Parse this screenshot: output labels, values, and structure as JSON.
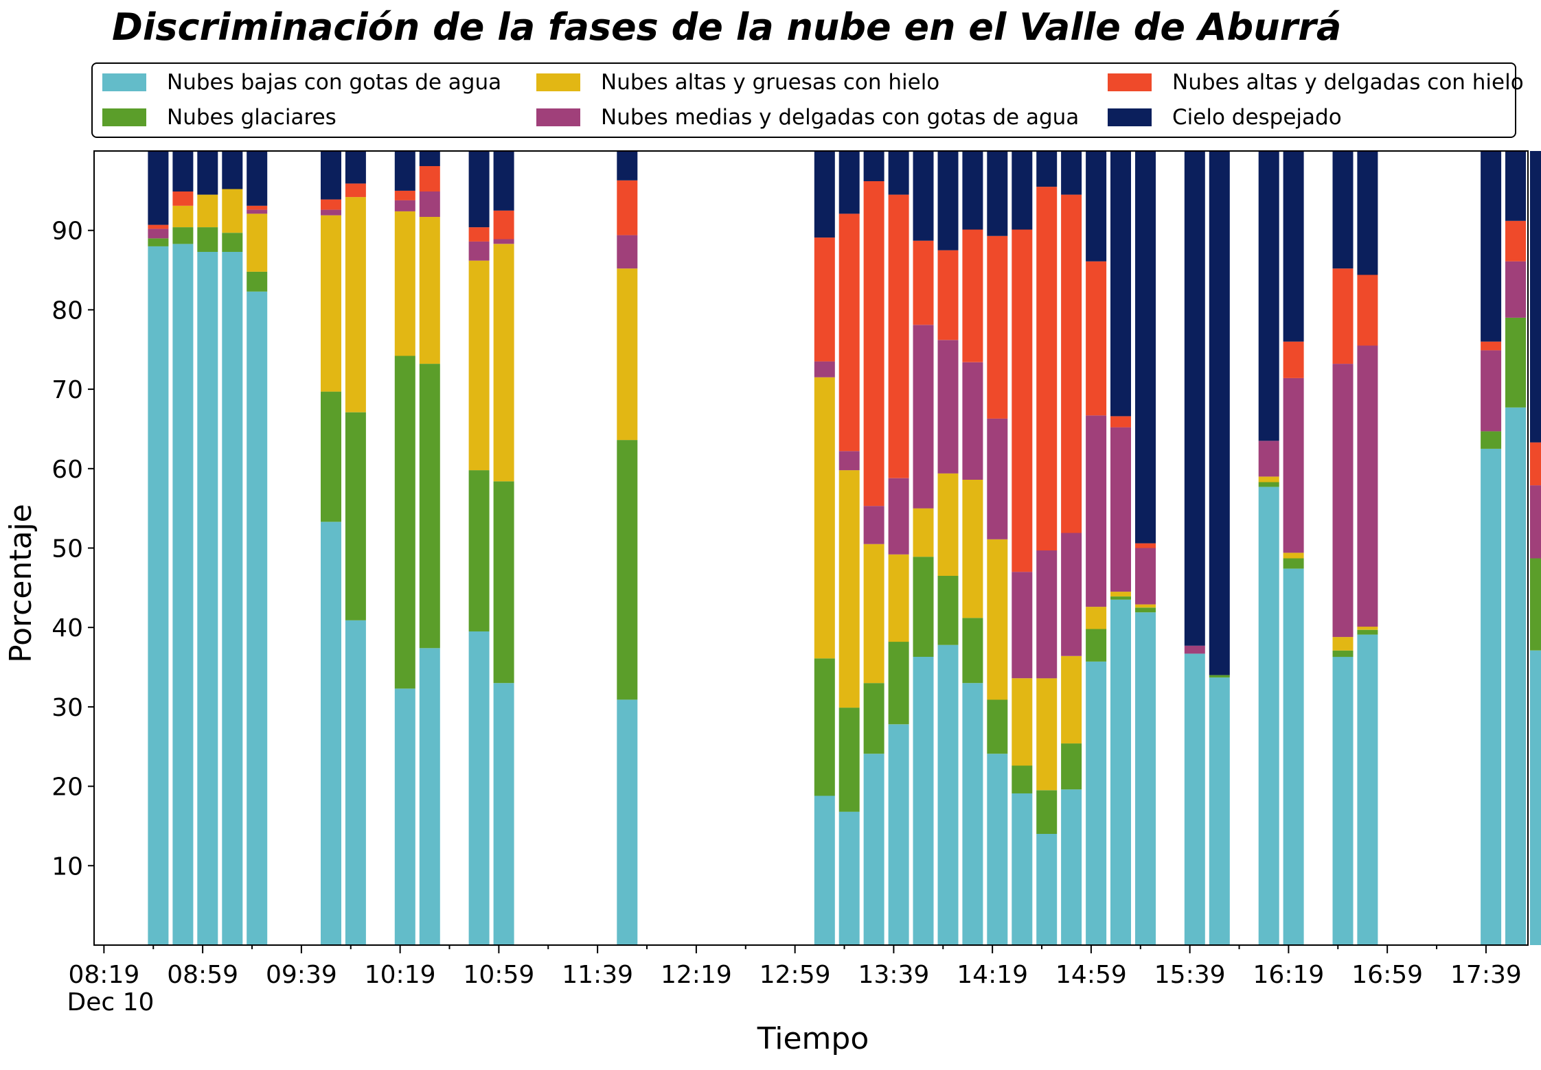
{
  "chart_data": {
    "type": "bar",
    "stacked": true,
    "title": "Discriminación de la fases de la nube en el Valle de Aburrá",
    "xlabel": "Tiempo",
    "ylabel": "Porcentaje",
    "ylim": [
      0,
      100
    ],
    "yticks": [
      10,
      20,
      30,
      40,
      50,
      60,
      70,
      80,
      90
    ],
    "xlim_minutes": [
      495,
      1076
    ],
    "xtick_labels": [
      "08:19",
      "08:59",
      "09:39",
      "10:19",
      "10:59",
      "11:39",
      "12:19",
      "12:59",
      "13:39",
      "14:19",
      "14:59",
      "15:39",
      "16:19",
      "16:59",
      "17:39"
    ],
    "xtick_minutes": [
      499,
      539,
      579,
      619,
      659,
      699,
      739,
      779,
      819,
      859,
      899,
      939,
      979,
      1019,
      1059
    ],
    "date_label": "Dec 10",
    "grid": false,
    "legend_position": "top",
    "times": [
      "08:41",
      "08:51",
      "09:01",
      "09:11",
      "09:21",
      "09:51",
      "10:01",
      "10:21",
      "10:31",
      "10:51",
      "11:01",
      "11:51",
      "13:11",
      "13:21",
      "13:31",
      "13:41",
      "13:51",
      "14:01",
      "14:11",
      "14:21",
      "14:31",
      "14:41",
      "14:51",
      "15:01",
      "15:11",
      "15:21",
      "15:41",
      "15:51",
      "16:11",
      "16:21",
      "16:41",
      "16:51",
      "17:41",
      "17:51",
      "18:01"
    ],
    "series": [
      {
        "name": "Nubes bajas con gotas de agua",
        "color": "#63bcc9",
        "values": [
          88.0,
          88.3,
          87.3,
          87.3,
          82.3,
          53.3,
          40.9,
          32.3,
          37.4,
          39.5,
          33.0,
          30.9,
          18.8,
          16.8,
          24.1,
          27.8,
          36.3,
          37.8,
          33.0,
          24.1,
          19.1,
          14.0,
          19.6,
          35.7,
          43.5,
          41.9,
          36.7,
          33.7,
          57.7,
          47.4,
          36.3,
          39.1,
          62.5,
          67.7,
          37.1
        ]
      },
      {
        "name": "Nubes glaciares",
        "color": "#5b9e2a",
        "values": [
          1.0,
          2.1,
          3.1,
          2.4,
          2.5,
          16.4,
          26.2,
          41.9,
          35.8,
          20.3,
          25.4,
          32.7,
          17.3,
          13.1,
          8.9,
          10.4,
          12.6,
          8.7,
          8.2,
          6.8,
          3.5,
          5.5,
          5.8,
          4.1,
          0.4,
          0.6,
          0,
          0.3,
          0.6,
          1.3,
          0.8,
          0.6,
          2.2,
          11.3,
          11.6
        ]
      },
      {
        "name": "Nubes altas y gruesas con hielo",
        "color": "#e2b714",
        "values": [
          0,
          2.7,
          4.1,
          5.5,
          7.3,
          22.2,
          27.1,
          18.2,
          18.5,
          26.4,
          29.9,
          21.6,
          35.4,
          29.9,
          17.5,
          11.0,
          6.1,
          12.9,
          17.4,
          20.2,
          11.0,
          14.1,
          11.0,
          2.8,
          0.6,
          0.4,
          0,
          0,
          0.7,
          0.7,
          1.7,
          0.4,
          0,
          0,
          0
        ]
      },
      {
        "name": "Nubes medias y delgadas con gotas de agua",
        "color": "#a0407a",
        "values": [
          1.2,
          0,
          0,
          0,
          0.5,
          0.7,
          0,
          1.4,
          3.2,
          2.4,
          0.6,
          4.2,
          2.0,
          2.4,
          4.8,
          9.6,
          23.1,
          16.8,
          14.8,
          15.2,
          13.4,
          16.1,
          15.5,
          24.1,
          20.7,
          7.1,
          1.0,
          0,
          4.5,
          22.0,
          34.4,
          35.4,
          10.2,
          7.1,
          9.2
        ]
      },
      {
        "name": "Nubes altas y delgadas con hielo",
        "color": "#ef4a2a",
        "values": [
          0.5,
          1.8,
          0,
          0,
          0.5,
          1.3,
          1.7,
          1.2,
          3.2,
          1.8,
          3.6,
          6.9,
          15.6,
          29.9,
          40.9,
          35.7,
          10.6,
          11.3,
          16.7,
          23.0,
          43.1,
          45.8,
          42.6,
          19.4,
          1.4,
          0.6,
          0,
          0,
          0,
          4.6,
          12.0,
          8.9,
          1.1,
          5.1,
          5.4
        ]
      },
      {
        "name": "Cielo despejado",
        "color": "#0b1f5c",
        "values": [
          9.3,
          5.1,
          5.5,
          4.8,
          6.9,
          6.1,
          4.1,
          5.0,
          1.9,
          9.6,
          7.5,
          3.7,
          10.9,
          7.9,
          3.8,
          5.5,
          11.3,
          12.5,
          9.9,
          10.7,
          9.9,
          4.5,
          5.5,
          13.9,
          33.4,
          49.4,
          62.3,
          66.0,
          36.5,
          24.0,
          14.8,
          15.6,
          24.0,
          8.8,
          36.7
        ]
      }
    ]
  }
}
